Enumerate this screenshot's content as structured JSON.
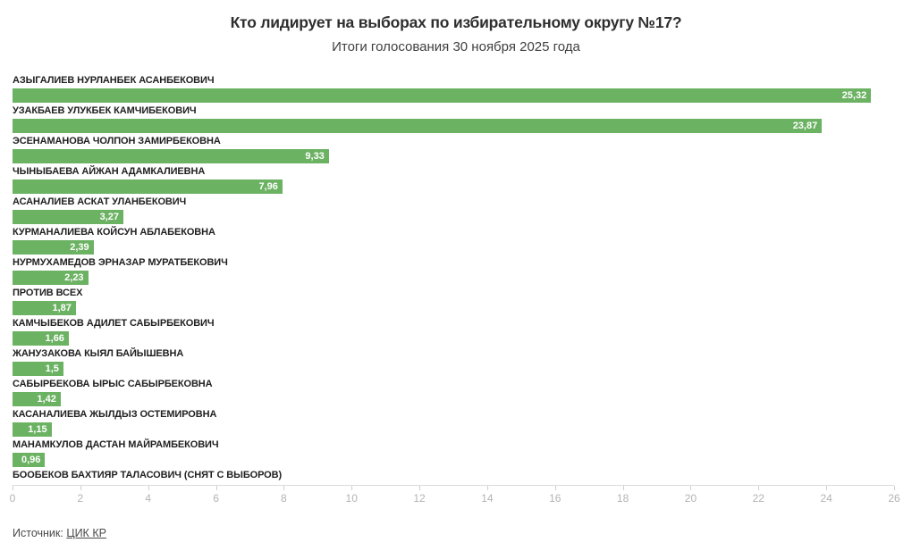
{
  "header": {
    "title": "Кто лидирует на выборах по избирательному округу №17?",
    "subtitle": "Итоги голосования 30 ноября 2025 года"
  },
  "chart_data": {
    "type": "bar",
    "orientation": "horizontal",
    "title": "Кто лидирует на выборах по избирательному округу №17?",
    "subtitle": "Итоги голосования 30 ноября 2025 года",
    "xlabel": "",
    "ylabel": "",
    "xlim": [
      0,
      26
    ],
    "x_ticks": [
      0,
      2,
      4,
      6,
      8,
      10,
      12,
      14,
      16,
      18,
      20,
      22,
      24,
      26
    ],
    "grid": false,
    "legend": false,
    "categories": [
      "АЗЫГАЛИЕВ НУРЛАНБЕК АСАНБЕКОВИЧ",
      "УЗАКБАЕВ УЛУКБЕК КАМЧИБЕКОВИЧ",
      "ЭСЕНАМАНОВА ЧОЛПОН ЗАМИРБЕКОВНА",
      "ЧЫНЫБАЕВА АЙЖАН АДАМКАЛИЕВНА",
      "АСАНАЛИЕВ АСКАТ УЛАНБЕКОВИЧ",
      "КУРМАНАЛИЕВА КОЙСУН АБЛАБЕКОВНА",
      "НУРМУХАМЕДОВ ЭРНАЗАР МУРАТБЕКОВИЧ",
      "ПРОТИВ ВСЕХ",
      "КАМЧЫБЕКОВ АДИЛЕТ САБЫРБЕКОВИЧ",
      "ЖАНУЗАКОВА КЫЯЛ БАЙЫШЕВНА",
      "САБЫРБЕКОВА ЫРЫС САБЫРБЕКОВНА",
      "КАСАНАЛИЕВА ЖЫЛДЫЗ ОСТЕМИРОВНА",
      "МАНАМКУЛОВ ДАСТАН МАЙРАМБЕКОВИЧ",
      "БООБЕКОВ БАХТИЯР ТАЛАСОВИЧ (снят с выборов)"
    ],
    "values": [
      25.32,
      23.87,
      9.33,
      7.96,
      3.27,
      2.39,
      2.23,
      1.87,
      1.66,
      1.5,
      1.42,
      1.15,
      0.96,
      null
    ],
    "value_labels": [
      "25,32",
      "23,87",
      "9,33",
      "7,96",
      "3,27",
      "2,39",
      "2,23",
      "1,87",
      "1,66",
      "1,5",
      "1,42",
      "1,15",
      "0,96",
      null
    ],
    "colors": {
      "bar": "#6cb263",
      "value_text": "#ffffff",
      "label_text": "#1f1f1f",
      "axis_line": "#dcdcdc",
      "tick_label": "#b3b3b3",
      "title": "#2e2e2e",
      "subtitle": "#3f3f3f"
    }
  },
  "footer": {
    "source_label": "Источник:",
    "source_link": "ЦИК КР"
  }
}
